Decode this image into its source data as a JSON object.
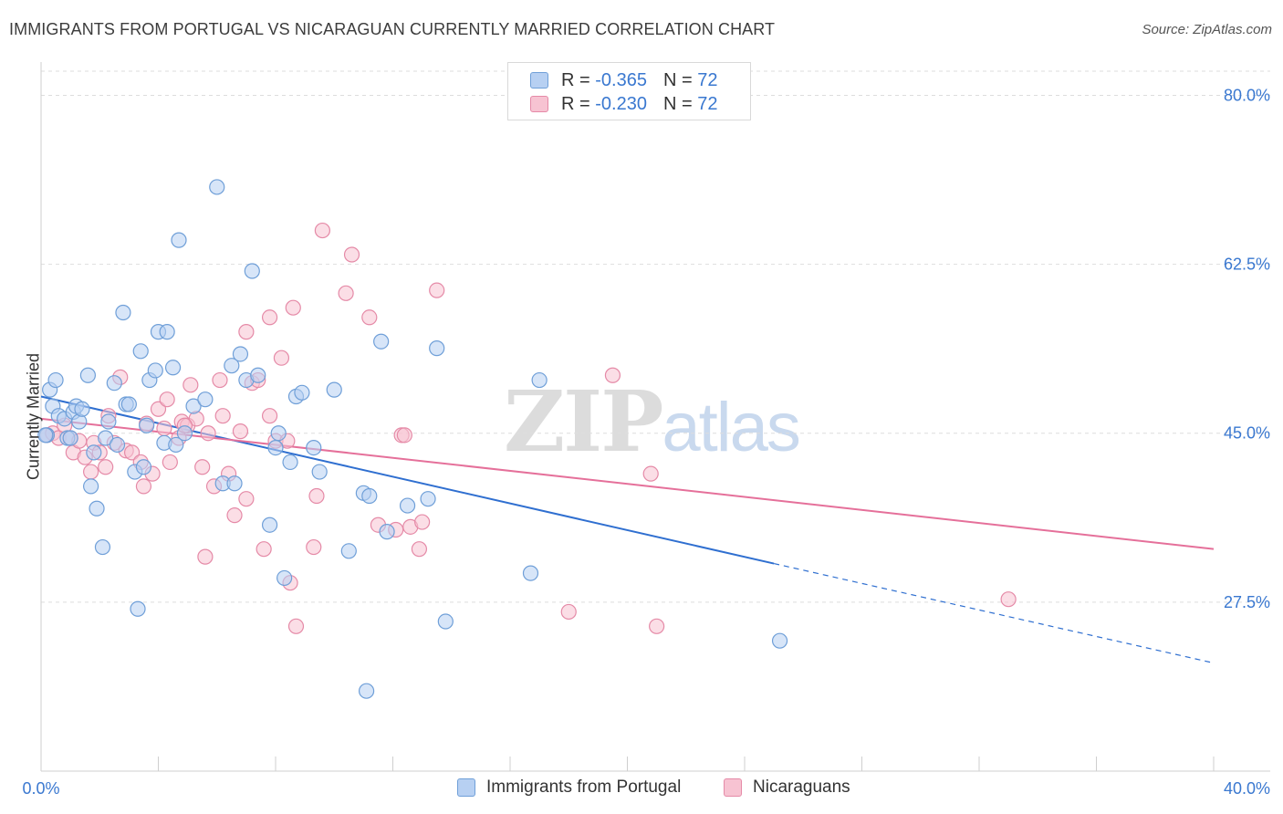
{
  "title": "IMMIGRANTS FROM PORTUGAL VS NICARAGUAN CURRENTLY MARRIED CORRELATION CHART",
  "source": "Source: ZipAtlas.com",
  "watermark": {
    "zip": "ZIP",
    "atlas": "atlas"
  },
  "legend": {
    "rows": [
      {
        "r_label": "R =",
        "r_value": "-0.365",
        "n_label": "N =",
        "n_value": "72"
      },
      {
        "r_label": "R =",
        "r_value": "-0.230",
        "n_label": "N =",
        "n_value": "72"
      }
    ]
  },
  "colors": {
    "blue_fill": "#b7d0f2",
    "blue_stroke": "#6f9fd8",
    "blue_line": "#2f6fd0",
    "pink_fill": "#f7c3d2",
    "pink_stroke": "#e58aa7",
    "pink_line": "#e5709a",
    "tick_label": "#3a78d0",
    "grid": "#dddddd"
  },
  "chart_data": {
    "type": "scatter",
    "title": "IMMIGRANTS FROM PORTUGAL VS NICARAGUAN CURRENTLY MARRIED CORRELATION CHART",
    "xlabel": "",
    "ylabel": "Currently Married",
    "xlim": [
      0,
      40
    ],
    "ylim": [
      10,
      82.5
    ],
    "x_tick_labels": [
      "0.0%",
      "40.0%"
    ],
    "y_ticks": [
      27.5,
      45.0,
      62.5,
      80.0
    ],
    "y_tick_labels": [
      "27.5%",
      "45.0%",
      "62.5%",
      "80.0%"
    ],
    "grid": "horizontal dashed",
    "legend_placement": "top-center",
    "series": [
      {
        "name": "Immigrants from Portugal",
        "points": [
          [
            0.2,
            44.8
          ],
          [
            0.3,
            49.5
          ],
          [
            0.4,
            47.8
          ],
          [
            0.5,
            50.5
          ],
          [
            0.6,
            46.8
          ],
          [
            0.8,
            46.5
          ],
          [
            0.9,
            44.5
          ],
          [
            1.0,
            44.5
          ],
          [
            1.1,
            47.2
          ],
          [
            1.2,
            47.8
          ],
          [
            1.3,
            46.2
          ],
          [
            1.4,
            47.5
          ],
          [
            1.6,
            51.0
          ],
          [
            1.7,
            39.5
          ],
          [
            1.8,
            43.0
          ],
          [
            1.9,
            37.2
          ],
          [
            2.1,
            33.2
          ],
          [
            2.2,
            44.5
          ],
          [
            2.3,
            46.2
          ],
          [
            2.5,
            50.2
          ],
          [
            2.6,
            43.8
          ],
          [
            2.8,
            57.5
          ],
          [
            2.9,
            48.0
          ],
          [
            3.0,
            48.0
          ],
          [
            3.2,
            41.0
          ],
          [
            3.3,
            26.8
          ],
          [
            3.4,
            53.5
          ],
          [
            3.5,
            41.5
          ],
          [
            3.6,
            45.8
          ],
          [
            3.7,
            50.5
          ],
          [
            3.9,
            51.5
          ],
          [
            4.0,
            55.5
          ],
          [
            4.2,
            44.0
          ],
          [
            4.3,
            55.5
          ],
          [
            4.5,
            51.8
          ],
          [
            4.6,
            43.8
          ],
          [
            4.7,
            65.0
          ],
          [
            4.9,
            45.0
          ],
          [
            5.2,
            47.8
          ],
          [
            5.6,
            48.5
          ],
          [
            6.0,
            70.5
          ],
          [
            6.2,
            39.8
          ],
          [
            6.6,
            39.8
          ],
          [
            6.5,
            52.0
          ],
          [
            6.8,
            53.2
          ],
          [
            7.0,
            50.5
          ],
          [
            7.2,
            61.8
          ],
          [
            7.4,
            51.0
          ],
          [
            7.8,
            35.5
          ],
          [
            8.0,
            43.5
          ],
          [
            8.1,
            45.0
          ],
          [
            8.3,
            30.0
          ],
          [
            8.5,
            42.0
          ],
          [
            8.7,
            48.8
          ],
          [
            8.9,
            49.2
          ],
          [
            9.3,
            43.5
          ],
          [
            9.5,
            41.0
          ],
          [
            10.0,
            49.5
          ],
          [
            10.5,
            32.8
          ],
          [
            11.0,
            38.8
          ],
          [
            11.2,
            38.5
          ],
          [
            11.6,
            54.5
          ],
          [
            11.8,
            34.8
          ],
          [
            12.5,
            37.5
          ],
          [
            13.2,
            38.2
          ],
          [
            13.5,
            53.8
          ],
          [
            13.8,
            25.5
          ],
          [
            17.0,
            50.5
          ],
          [
            16.7,
            30.5
          ],
          [
            25.2,
            23.5
          ],
          [
            11.1,
            18.3
          ],
          [
            0.15,
            44.8
          ]
        ]
      },
      {
        "name": "Nicaraguans",
        "points": [
          [
            0.2,
            44.8
          ],
          [
            0.4,
            45.0
          ],
          [
            0.6,
            44.5
          ],
          [
            0.8,
            45.8
          ],
          [
            1.0,
            44.5
          ],
          [
            1.1,
            43.0
          ],
          [
            1.3,
            44.2
          ],
          [
            1.5,
            42.5
          ],
          [
            1.7,
            41.0
          ],
          [
            1.8,
            44.0
          ],
          [
            2.0,
            43.0
          ],
          [
            2.2,
            41.5
          ],
          [
            2.3,
            46.8
          ],
          [
            2.5,
            44.0
          ],
          [
            2.7,
            50.8
          ],
          [
            2.9,
            43.2
          ],
          [
            3.1,
            43.0
          ],
          [
            3.4,
            42.0
          ],
          [
            3.5,
            39.5
          ],
          [
            3.6,
            46.0
          ],
          [
            3.8,
            40.8
          ],
          [
            4.0,
            47.5
          ],
          [
            4.2,
            45.5
          ],
          [
            4.3,
            48.5
          ],
          [
            4.4,
            42.0
          ],
          [
            4.7,
            44.5
          ],
          [
            4.8,
            46.2
          ],
          [
            5.0,
            45.8
          ],
          [
            5.1,
            50.0
          ],
          [
            5.3,
            46.5
          ],
          [
            5.5,
            41.5
          ],
          [
            5.6,
            32.2
          ],
          [
            5.7,
            45.0
          ],
          [
            5.9,
            39.5
          ],
          [
            6.1,
            50.5
          ],
          [
            6.2,
            46.8
          ],
          [
            6.4,
            40.8
          ],
          [
            6.6,
            36.5
          ],
          [
            6.8,
            45.2
          ],
          [
            7.0,
            38.2
          ],
          [
            7.0,
            55.5
          ],
          [
            7.2,
            50.2
          ],
          [
            7.4,
            50.5
          ],
          [
            7.6,
            33.0
          ],
          [
            7.8,
            46.8
          ],
          [
            7.8,
            57.0
          ],
          [
            8.0,
            44.2
          ],
          [
            8.2,
            52.8
          ],
          [
            8.4,
            44.2
          ],
          [
            8.5,
            29.5
          ],
          [
            8.6,
            58.0
          ],
          [
            8.7,
            25.0
          ],
          [
            9.3,
            33.2
          ],
          [
            9.4,
            38.5
          ],
          [
            9.6,
            66.0
          ],
          [
            10.4,
            59.5
          ],
          [
            10.6,
            63.5
          ],
          [
            11.2,
            57.0
          ],
          [
            11.5,
            35.5
          ],
          [
            12.1,
            35.0
          ],
          [
            12.3,
            44.8
          ],
          [
            12.6,
            35.3
          ],
          [
            12.9,
            33.0
          ],
          [
            13.0,
            35.8
          ],
          [
            13.5,
            59.8
          ],
          [
            18.0,
            26.5
          ],
          [
            19.5,
            51.0
          ],
          [
            20.8,
            40.8
          ],
          [
            21.0,
            25.0
          ],
          [
            33.0,
            27.8
          ],
          [
            12.4,
            44.8
          ],
          [
            4.9,
            45.8
          ]
        ]
      }
    ],
    "trend_lines": [
      {
        "series": "Immigrants from Portugal",
        "x_start": 0,
        "y_start": 48.8,
        "x_solid_end": 25,
        "y_solid_end": 31.5,
        "x_end": 40,
        "y_end": 21.2
      },
      {
        "series": "Nicaraguans",
        "x_start": 0,
        "y_start": 46.5,
        "x_end": 40,
        "y_end": 33.0
      }
    ]
  }
}
